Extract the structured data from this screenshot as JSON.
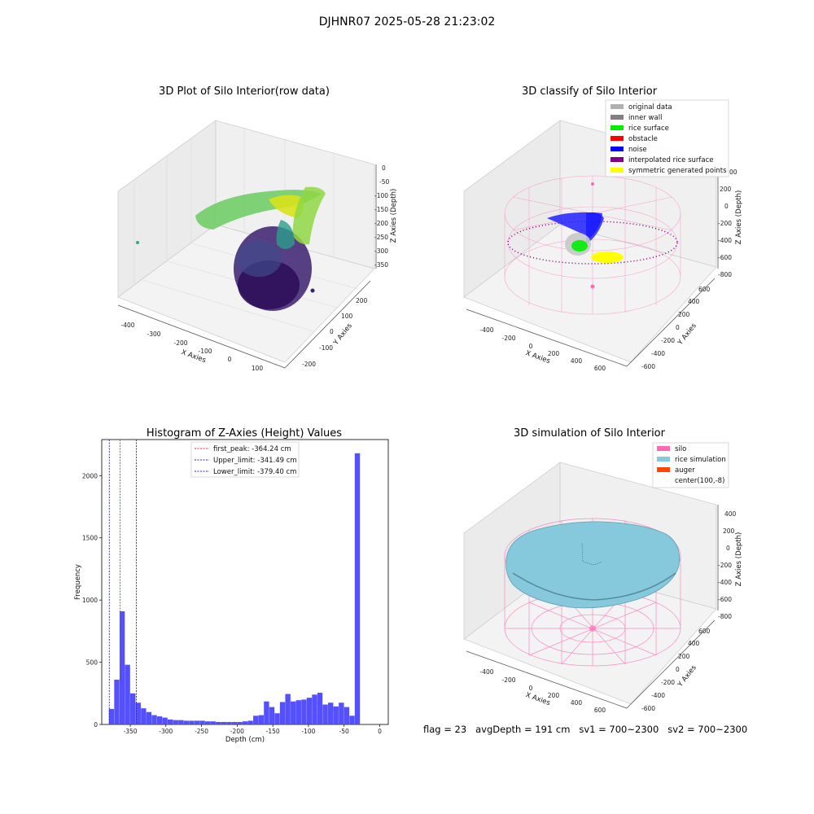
{
  "figure": {
    "suptitle": "DJHNR07 2025-05-28 21:23:02",
    "footer": "flag = 23   avgDepth = 191 cm   sv1 = 700~2300   sv2 = 700~2300"
  },
  "colors": {
    "histogram_bar": "#4b47ff",
    "first_peak": "#e03030",
    "limit_lines": "#2a2aa0",
    "silo_wire": "#ff69b4",
    "rice_surface": "#86c8dc",
    "noise": "#0000ff",
    "obstacle": "#ff0000",
    "rice_surface_points": "#00ee00",
    "interpolated": "#800080",
    "symmetric": "#ffff00",
    "inner_wall": "#808080",
    "original": "#b0b0b0",
    "auger": "#ff4500"
  },
  "plots": {
    "raw": {
      "title": "3D Plot of Silo Interior(row data)",
      "xlabel": "X Axies",
      "ylabel": "Y Axies",
      "zlabel": "Z Axies (Depth)",
      "xticks": [
        "-400",
        "-300",
        "-200",
        "-100",
        "0",
        "100"
      ],
      "yticks": [
        "-200",
        "-100",
        "0",
        "100",
        "200"
      ],
      "zticks": [
        "0",
        "-50",
        "-100",
        "-150",
        "-200",
        "-250",
        "-300",
        "-350"
      ]
    },
    "classify": {
      "title": "3D classify of Silo Interior",
      "xlabel": "X Axies",
      "ylabel": "Y Axies",
      "zlabel": "Z Axies (Depth)",
      "xticks": [
        "-400",
        "-200",
        "0",
        "200",
        "400",
        "600"
      ],
      "yticks": [
        "-600",
        "-400",
        "-200",
        "0",
        "200",
        "400",
        "600"
      ],
      "zticks": [
        "200",
        "0",
        "-200",
        "-400",
        "-600",
        "-800"
      ],
      "zticks_partial_top": "00",
      "legend": [
        "original data",
        "inner wall",
        "rice surface",
        "obstacle",
        "noise",
        "interpolated rice surface",
        "symmetric generated points"
      ],
      "legend_colors": [
        "#b0b0b0",
        "#808080",
        "#00ee00",
        "#ff0000",
        "#0000ff",
        "#800080",
        "#ffff00"
      ]
    },
    "sim": {
      "title": "3D simulation of Silo Interior",
      "xlabel": "X Axies",
      "ylabel": "Y Axies",
      "zlabel": "Z Axies (Depth)",
      "xticks": [
        "-400",
        "-200",
        "0",
        "200",
        "400",
        "600"
      ],
      "yticks": [
        "-600",
        "-400",
        "-200",
        "0",
        "200",
        "400",
        "600"
      ],
      "zticks": [
        "400",
        "200",
        "0",
        "-200",
        "-400",
        "-600",
        "-800"
      ],
      "legend": [
        "silo",
        "rice simulation",
        "auger",
        "center(100,-8)"
      ],
      "legend_colors": [
        "#ff69b4",
        "#86c8dc",
        "#ff4500",
        ""
      ]
    }
  },
  "chart_data": [
    {
      "type": "histogram",
      "title": "Histogram of Z-Axies (Height) Values",
      "xlabel": "Depth (cm)",
      "ylabel": "Frequency",
      "xlim": [
        -390,
        12
      ],
      "ylim": [
        0,
        2290
      ],
      "xticks": [
        -350,
        -300,
        -250,
        -200,
        -150,
        -100,
        -50,
        0
      ],
      "yticks": [
        0,
        500,
        1000,
        1500,
        2000
      ],
      "bin_width": 7.5,
      "bin_start": -380,
      "values": [
        125,
        360,
        910,
        480,
        250,
        175,
        130,
        100,
        75,
        65,
        55,
        40,
        35,
        35,
        30,
        30,
        30,
        30,
        25,
        25,
        20,
        20,
        20,
        20,
        20,
        25,
        30,
        70,
        75,
        185,
        140,
        90,
        180,
        245,
        185,
        195,
        200,
        215,
        240,
        255,
        160,
        175,
        145,
        175,
        140,
        70,
        2180
      ],
      "vlines": [
        {
          "label": "first_peak: -364.24 cm",
          "x": -364.24,
          "color": "#e03030"
        },
        {
          "label": "Upper_limit: -341.49 cm",
          "x": -341.49,
          "color": "#2a2aa0"
        },
        {
          "label": "Lower_limit: -379.40 cm",
          "x": -379.4,
          "color": "#2a2aa0"
        }
      ],
      "legend": "top-center",
      "grid": false
    }
  ]
}
